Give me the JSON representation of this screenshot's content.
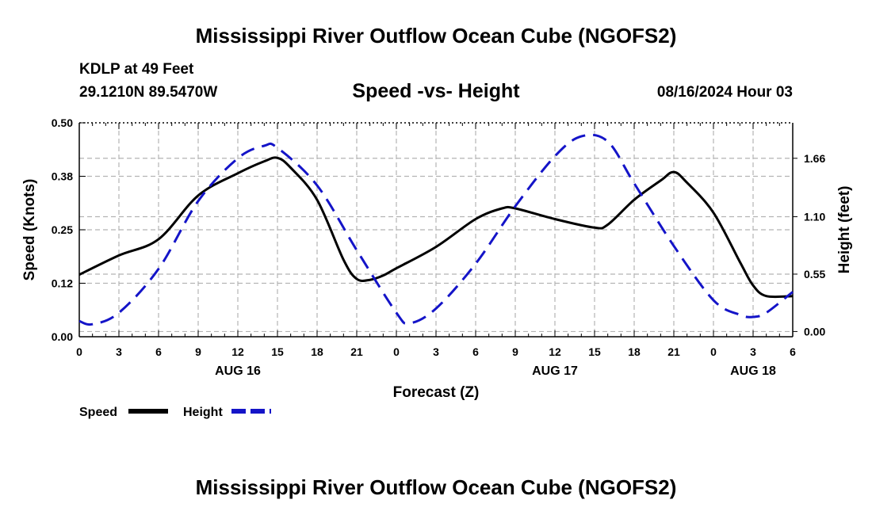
{
  "title": "Mississippi River Outflow Ocean Cube (NGOFS2)",
  "footer_title": "Mississippi River Outflow Ocean Cube (NGOFS2)",
  "station": "KDLP at 49 Feet",
  "coordinates": "29.1210N  89.5470W",
  "subtitle": "Speed -vs- Height",
  "datetime": "08/16/2024 Hour 03",
  "colors": {
    "speed": "#000000",
    "height": "#1414c8",
    "grid": "#b4b4b4"
  },
  "chart_data": {
    "type": "line",
    "title": "Speed -vs- Height",
    "xlabel": "Forecast (Z)",
    "ylabel": "Speed (Knots)",
    "y2label": "Height (feet)",
    "x_range": [
      0,
      54
    ],
    "ylim": [
      0,
      0.5
    ],
    "y2lim": [
      -0.05,
      2.0
    ],
    "x_ticks": [
      0,
      3,
      6,
      9,
      12,
      15,
      18,
      21,
      24,
      27,
      30,
      33,
      36,
      39,
      42,
      45,
      48,
      51,
      54
    ],
    "x_tick_labels": [
      "0",
      "3",
      "6",
      "9",
      "12",
      "15",
      "18",
      "21",
      "0",
      "3",
      "6",
      "9",
      "12",
      "15",
      "18",
      "21",
      "0",
      "3",
      "6"
    ],
    "y_ticks": [
      0,
      0.125,
      0.25,
      0.375,
      0.5
    ],
    "y_tick_labels": [
      "0.00",
      "0.12",
      "0.25",
      "0.38",
      "0.50"
    ],
    "y2_ticks": [
      0,
      0.55,
      1.1,
      1.66
    ],
    "y2_tick_labels": [
      "0.00",
      "0.55",
      "1.10",
      "1.66"
    ],
    "day_labels": [
      {
        "x": 12,
        "label": "AUG 16"
      },
      {
        "x": 36,
        "label": "AUG 17"
      },
      {
        "x": 51,
        "label": "AUG 18"
      }
    ],
    "grid": true,
    "legend": "bottom-left",
    "series": [
      {
        "name": "Speed",
        "axis": "left",
        "style": "solid",
        "x": [
          0,
          3,
          6,
          9,
          12,
          14,
          15,
          16,
          18,
          20,
          21,
          22,
          23,
          24,
          27,
          30,
          32,
          33,
          36,
          39,
          40,
          42,
          44,
          45,
          46,
          48,
          50,
          51,
          52,
          54
        ],
        "values": [
          0.145,
          0.19,
          0.228,
          0.33,
          0.382,
          0.41,
          0.418,
          0.395,
          0.32,
          0.18,
          0.135,
          0.133,
          0.143,
          0.16,
          0.21,
          0.275,
          0.3,
          0.3,
          0.275,
          0.255,
          0.262,
          0.32,
          0.365,
          0.385,
          0.36,
          0.29,
          0.175,
          0.12,
          0.095,
          0.095
        ]
      },
      {
        "name": "Height",
        "axis": "right",
        "style": "dashed",
        "x": [
          0,
          1,
          3,
          6,
          9,
          12,
          14,
          15,
          18,
          21,
          24,
          25,
          27,
          30,
          33,
          36,
          38,
          40,
          42,
          45,
          48,
          50,
          51,
          52,
          54
        ],
        "values": [
          0.1,
          0.07,
          0.18,
          0.6,
          1.25,
          1.66,
          1.78,
          1.76,
          1.4,
          0.78,
          0.18,
          0.08,
          0.22,
          0.65,
          1.2,
          1.68,
          1.87,
          1.82,
          1.42,
          0.82,
          0.3,
          0.16,
          0.14,
          0.18,
          0.38
        ]
      }
    ],
    "xlabel_text": "Forecast (Z)"
  }
}
